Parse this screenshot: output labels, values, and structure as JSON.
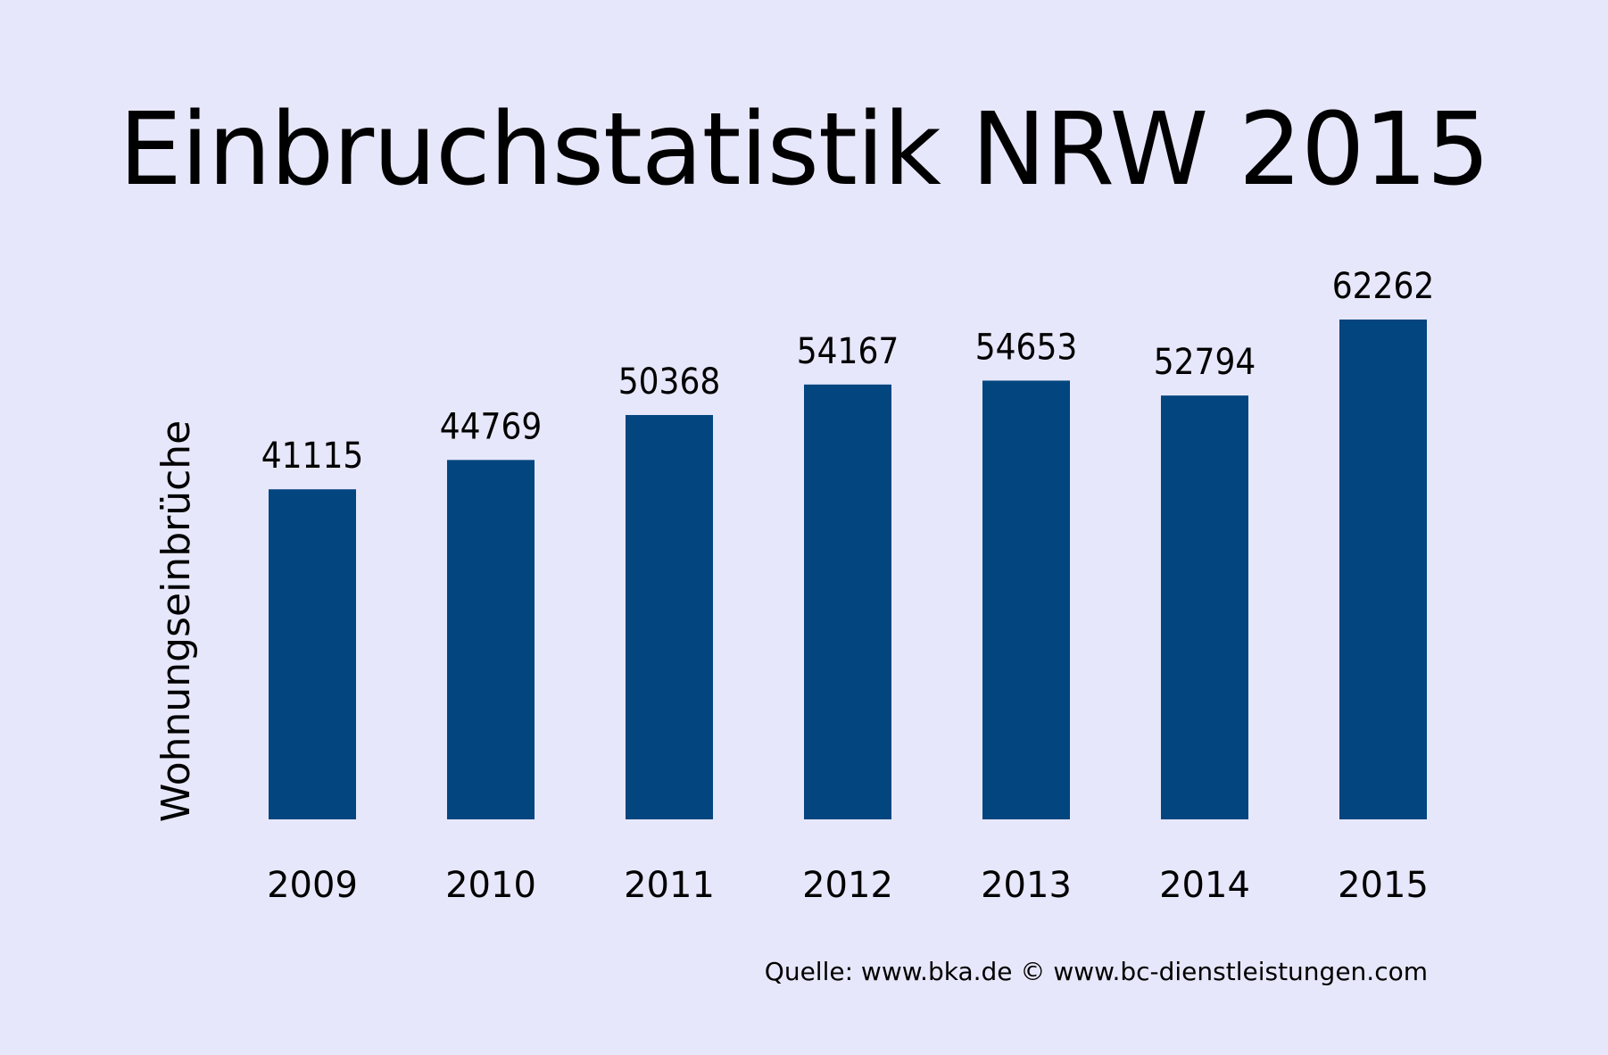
{
  "chart_data": {
    "type": "bar",
    "title": "Einbruchstatistik NRW 2015",
    "xlabel": "",
    "ylabel": "Wohnungseinbrüche",
    "categories": [
      "2009",
      "2010",
      "2011",
      "2012",
      "2013",
      "2014",
      "2015"
    ],
    "values": [
      41115,
      44769,
      50368,
      54167,
      54653,
      52794,
      62262
    ],
    "ylim": [
      0,
      62262
    ],
    "grid": false,
    "legend": "none",
    "bar_color": "#02457f"
  },
  "source": "Quelle: www.bka.de  © www.bc-dienstleistungen.com",
  "colors": {
    "background": "#e7e7fb",
    "bar": "#02457f"
  }
}
